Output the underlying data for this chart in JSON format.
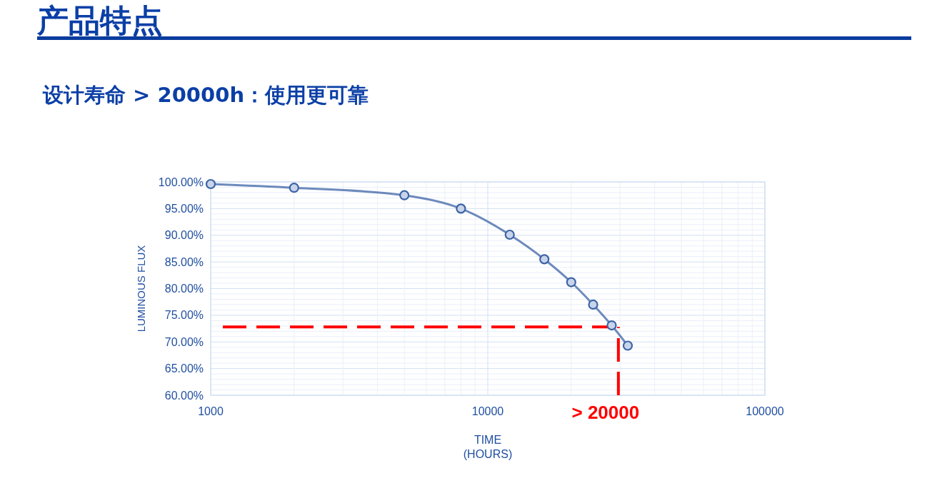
{
  "chart_data": {
    "type": "line",
    "title": "产品特点",
    "subtitle": "设计寿命 > 20000h：使用更可靠",
    "xlabel": "TIME\n(HOURS)",
    "ylabel": "LUMINOUS FLUX",
    "x": [
      1000,
      2000,
      5000,
      8000,
      12000,
      16000,
      20000,
      24000,
      28000,
      32000
    ],
    "series": [
      {
        "color": "#3c63a6",
        "values": [
          99.6,
          98.9,
          97.5,
          95.0,
          90.1,
          85.5,
          81.2,
          77.0,
          73.1,
          69.3
        ]
      }
    ],
    "log": "x",
    "xlim": [
      1000,
      100000
    ],
    "xticks": [
      1000,
      10000,
      100000
    ],
    "ylim": [
      60,
      100
    ],
    "yticks": [
      {
        "value": 60,
        "label": "60.00%"
      },
      {
        "value": 65,
        "label": "65.00%"
      },
      {
        "value": 70,
        "label": "70.00%"
      },
      {
        "value": 75,
        "label": "75.00%"
      },
      {
        "value": 80,
        "label": "80.00%"
      },
      {
        "value": 85,
        "label": "85.00%"
      },
      {
        "value": 90,
        "label": "90.00%"
      },
      {
        "value": 95,
        "label": "95.00%"
      },
      {
        "value": 100,
        "label": "100.00%"
      }
    ],
    "grid": true,
    "marker": "circle",
    "ref_lines": [
      {
        "axis": "y",
        "value": 72.8,
        "color": "#ff0000",
        "line_style": "dashed"
      },
      {
        "axis": "x",
        "value": 29600,
        "color": "#ff0000",
        "line_style": "dashed"
      }
    ],
    "annotations": [
      "> 20000"
    ]
  }
}
